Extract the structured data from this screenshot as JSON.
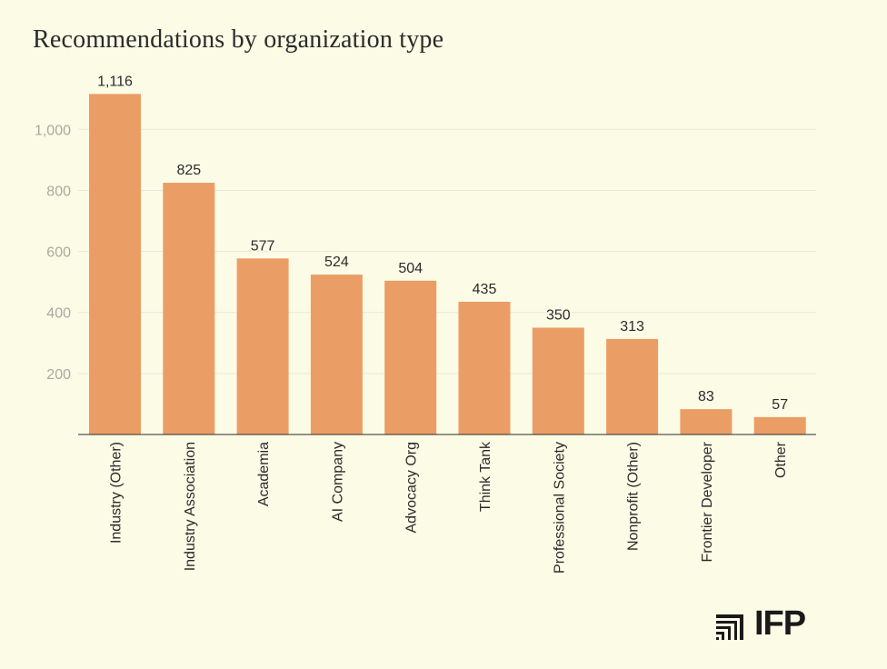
{
  "chart_data": {
    "type": "bar",
    "title": "Recommendations by organization type",
    "xlabel": "",
    "ylabel": "",
    "categories": [
      "Industry (Other)",
      "Industry Association",
      "Academia",
      "AI Company",
      "Advocacy Org",
      "Think Tank",
      "Professional Society",
      "Nonprofit (Other)",
      "Frontier Developer",
      "Other"
    ],
    "values": [
      1116,
      825,
      577,
      524,
      504,
      435,
      350,
      313,
      83,
      57
    ],
    "value_labels": [
      "1,116",
      "825",
      "577",
      "524",
      "504",
      "435",
      "350",
      "313",
      "83",
      "57"
    ],
    "yticks": [
      200,
      400,
      600,
      800,
      1000
    ],
    "ytick_labels": [
      "200",
      "400",
      "600",
      "800",
      "1,000"
    ],
    "ylim": [
      0,
      1150
    ],
    "grid": true,
    "legend": "none",
    "bar_color": "#EA9E66"
  },
  "logo": {
    "text": "IFP"
  },
  "colors": {
    "background": "#FCFBE6",
    "bar": "#EA9E66",
    "grid": "#E9E8D6",
    "axis": "#2b2b2b"
  }
}
